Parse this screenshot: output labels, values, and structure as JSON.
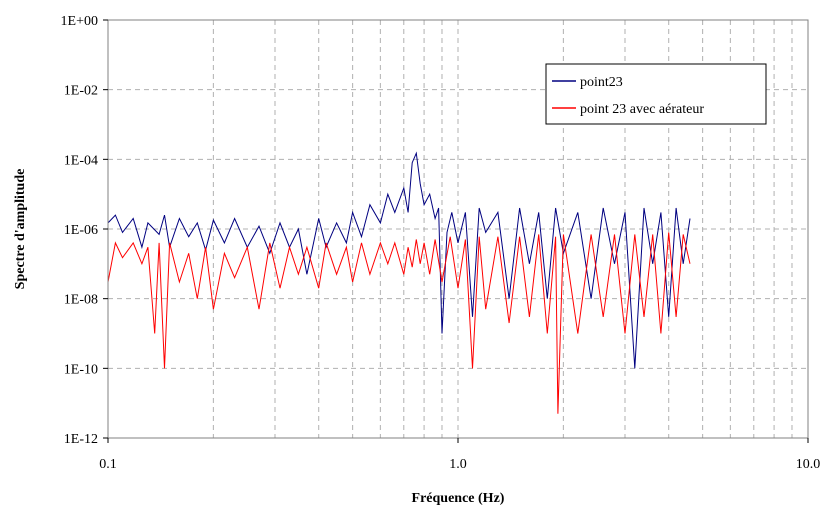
{
  "chart_data": {
    "type": "line",
    "title": "",
    "xlabel": "Fréquence (Hz)",
    "ylabel": "Spectre d'amplitude",
    "x_scale": "log",
    "y_scale": "log",
    "xlim": [
      0.1,
      10.0
    ],
    "ylim": [
      1e-12,
      1
    ],
    "x_ticks": [
      {
        "value": 0.1,
        "label": "0.1"
      },
      {
        "value": 1.0,
        "label": "1.0"
      },
      {
        "value": 10.0,
        "label": "10.0"
      }
    ],
    "y_ticks": [
      {
        "value": 1,
        "label": "1E+00"
      },
      {
        "value": 0.01,
        "label": "1E-02"
      },
      {
        "value": 0.0001,
        "label": "1E-04"
      },
      {
        "value": 1e-06,
        "label": "1E-06"
      },
      {
        "value": 1e-08,
        "label": "1E-08"
      },
      {
        "value": 1e-10,
        "label": "1E-10"
      },
      {
        "value": 1e-12,
        "label": "1E-12"
      }
    ],
    "grid": true,
    "grid_style": "dashed",
    "legend_position": "top-right",
    "series": [
      {
        "name": "point23",
        "color": "#000080",
        "x": [
          0.1,
          0.105,
          0.11,
          0.118,
          0.125,
          0.13,
          0.14,
          0.145,
          0.15,
          0.16,
          0.17,
          0.18,
          0.19,
          0.2,
          0.215,
          0.23,
          0.25,
          0.27,
          0.29,
          0.31,
          0.33,
          0.35,
          0.37,
          0.4,
          0.42,
          0.45,
          0.48,
          0.5,
          0.53,
          0.56,
          0.6,
          0.63,
          0.66,
          0.7,
          0.72,
          0.74,
          0.76,
          0.78,
          0.8,
          0.83,
          0.86,
          0.88,
          0.9,
          0.93,
          0.96,
          1.0,
          1.05,
          1.1,
          1.15,
          1.2,
          1.3,
          1.4,
          1.5,
          1.6,
          1.7,
          1.8,
          1.9,
          2.0,
          2.2,
          2.4,
          2.6,
          2.8,
          3.0,
          3.2,
          3.4,
          3.6,
          3.8,
          4.0,
          4.2,
          4.4,
          4.6
        ],
        "y": [
          1.5e-06,
          2.5e-06,
          8e-07,
          2e-06,
          3e-07,
          1.5e-06,
          7e-07,
          2.5e-06,
          3e-07,
          2e-06,
          6e-07,
          1.5e-06,
          2.5e-07,
          1.8e-06,
          4e-07,
          2e-06,
          3e-07,
          1.2e-06,
          2e-07,
          1.5e-06,
          3e-07,
          1e-06,
          5e-08,
          2e-06,
          3e-07,
          1.5e-06,
          4e-07,
          3e-06,
          6e-07,
          5e-06,
          1.5e-06,
          1e-05,
          3e-06,
          1.5e-05,
          3e-06,
          8e-05,
          0.00015,
          2e-05,
          5e-06,
          1e-05,
          2e-06,
          4e-06,
          1e-09,
          8e-07,
          3e-06,
          4e-07,
          3e-06,
          3e-09,
          4e-06,
          8e-07,
          3e-06,
          1e-08,
          4e-06,
          1e-07,
          3e-06,
          1e-08,
          4e-06,
          2e-07,
          3e-06,
          1e-08,
          4e-06,
          1e-07,
          3e-06,
          1e-10,
          4e-06,
          1e-07,
          3e-06,
          3e-09,
          4e-06,
          1e-07,
          2e-06
        ]
      },
      {
        "name": "point 23 avec aérateur",
        "color": "#ff0000",
        "x": [
          0.1,
          0.105,
          0.11,
          0.118,
          0.125,
          0.13,
          0.136,
          0.14,
          0.145,
          0.15,
          0.16,
          0.17,
          0.18,
          0.19,
          0.2,
          0.215,
          0.23,
          0.25,
          0.27,
          0.29,
          0.31,
          0.33,
          0.35,
          0.37,
          0.4,
          0.42,
          0.45,
          0.48,
          0.5,
          0.53,
          0.56,
          0.6,
          0.63,
          0.66,
          0.7,
          0.72,
          0.74,
          0.76,
          0.78,
          0.8,
          0.83,
          0.86,
          0.9,
          0.95,
          1.0,
          1.05,
          1.1,
          1.15,
          1.2,
          1.3,
          1.4,
          1.5,
          1.6,
          1.7,
          1.8,
          1.9,
          1.93,
          2.0,
          2.2,
          2.4,
          2.6,
          2.8,
          3.0,
          3.2,
          3.4,
          3.6,
          3.8,
          4.0,
          4.2,
          4.4,
          4.6
        ],
        "y": [
          3e-08,
          4e-07,
          1.5e-07,
          4e-07,
          1e-07,
          3e-07,
          1e-09,
          4e-07,
          1e-10,
          4e-07,
          3e-08,
          2e-07,
          1e-08,
          3e-07,
          5e-09,
          2e-07,
          4e-08,
          3e-07,
          5e-09,
          4e-07,
          2e-08,
          3e-07,
          5e-08,
          3e-07,
          2e-08,
          4e-07,
          5e-08,
          3e-07,
          3e-08,
          4e-07,
          5e-08,
          4e-07,
          1e-07,
          4e-07,
          5e-08,
          3e-07,
          8e-08,
          5e-07,
          1e-07,
          4e-07,
          5e-08,
          5e-07,
          3e-08,
          6e-07,
          2e-08,
          5e-07,
          1e-10,
          6e-07,
          5e-09,
          6e-07,
          2e-09,
          6e-07,
          3e-09,
          7e-07,
          1e-09,
          6e-07,
          5e-12,
          7e-07,
          1e-09,
          7e-07,
          3e-09,
          7e-07,
          1e-09,
          7e-07,
          3e-09,
          7e-07,
          1e-09,
          8e-07,
          3e-09,
          7e-07,
          1e-07
        ]
      }
    ]
  }
}
